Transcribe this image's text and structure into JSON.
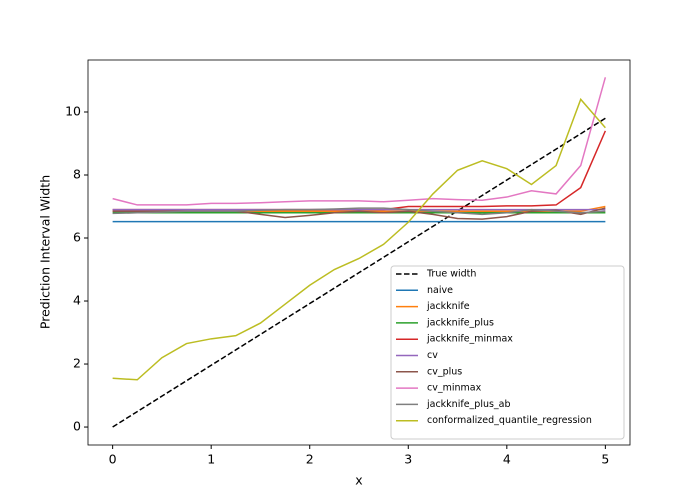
{
  "chart_data": {
    "type": "line",
    "xlabel": "x",
    "ylabel": "Prediction Interval Width",
    "x": [
      0,
      0.25,
      0.5,
      0.75,
      1,
      1.25,
      1.5,
      1.75,
      2,
      2.25,
      2.5,
      2.75,
      3,
      3.25,
      3.5,
      3.75,
      4,
      4.25,
      4.5,
      4.75,
      5
    ],
    "xlim": [
      -0.25,
      5.25
    ],
    "xticks": [
      0,
      1,
      2,
      3,
      4,
      5
    ],
    "ylim": [
      -0.57,
      11.65
    ],
    "yticks": [
      0,
      2,
      4,
      6,
      8,
      10
    ],
    "legend": "lower right",
    "series": [
      {
        "name": "True width",
        "color": "#000000",
        "dashed": true,
        "values": [
          0,
          0.49,
          0.98,
          1.47,
          1.96,
          2.45,
          2.94,
          3.43,
          3.92,
          4.41,
          4.9,
          5.39,
          5.88,
          6.37,
          6.86,
          7.35,
          7.84,
          8.33,
          8.82,
          9.31,
          9.8
        ]
      },
      {
        "name": "naive",
        "color": "#1f77b4",
        "values": [
          6.52,
          6.52,
          6.52,
          6.52,
          6.52,
          6.52,
          6.52,
          6.52,
          6.52,
          6.52,
          6.52,
          6.52,
          6.52,
          6.52,
          6.52,
          6.52,
          6.52,
          6.52,
          6.52,
          6.52,
          6.52
        ]
      },
      {
        "name": "jackknife",
        "color": "#ff7f0e",
        "values": [
          6.85,
          6.85,
          6.85,
          6.85,
          6.85,
          6.85,
          6.85,
          6.85,
          6.85,
          6.85,
          6.85,
          6.85,
          6.85,
          6.85,
          6.85,
          6.85,
          6.85,
          6.85,
          6.85,
          6.85,
          7.0
        ]
      },
      {
        "name": "jackknife_plus",
        "color": "#2ca02c",
        "values": [
          6.8,
          6.8,
          6.8,
          6.8,
          6.8,
          6.8,
          6.8,
          6.8,
          6.8,
          6.8,
          6.8,
          6.8,
          6.8,
          6.8,
          6.8,
          6.8,
          6.8,
          6.8,
          6.8,
          6.8,
          6.8
        ]
      },
      {
        "name": "jackknife_minmax",
        "color": "#d62728",
        "values": [
          6.9,
          6.9,
          6.9,
          6.9,
          6.9,
          6.9,
          6.9,
          6.9,
          6.9,
          6.9,
          6.9,
          6.9,
          7.0,
          7.0,
          7.0,
          7.0,
          7.02,
          7.02,
          7.05,
          7.6,
          9.4
        ]
      },
      {
        "name": "cv",
        "color": "#9467bd",
        "values": [
          6.9,
          6.9,
          6.9,
          6.9,
          6.9,
          6.9,
          6.9,
          6.9,
          6.9,
          6.9,
          6.9,
          6.9,
          6.9,
          6.9,
          6.9,
          6.9,
          6.9,
          6.9,
          6.9,
          6.9,
          6.9
        ]
      },
      {
        "name": "cv_plus",
        "color": "#8c564b",
        "values": [
          6.85,
          6.85,
          6.85,
          6.85,
          6.85,
          6.85,
          6.75,
          6.65,
          6.72,
          6.8,
          6.85,
          6.8,
          6.85,
          6.75,
          6.62,
          6.6,
          6.68,
          6.85,
          6.88,
          6.75,
          6.95
        ]
      },
      {
        "name": "cv_minmax",
        "color": "#e377c2",
        "values": [
          7.25,
          7.05,
          7.05,
          7.05,
          7.1,
          7.1,
          7.12,
          7.15,
          7.18,
          7.18,
          7.18,
          7.15,
          7.2,
          7.25,
          7.22,
          7.2,
          7.3,
          7.5,
          7.4,
          8.3,
          11.1
        ]
      },
      {
        "name": "jackknife_plus_ab",
        "color": "#7f7f7f",
        "values": [
          6.78,
          6.8,
          6.82,
          6.85,
          6.85,
          6.85,
          6.88,
          6.9,
          6.9,
          6.92,
          6.95,
          6.95,
          6.9,
          6.85,
          6.8,
          6.75,
          6.8,
          6.9,
          6.85,
          6.8,
          6.85
        ]
      },
      {
        "name": "conformalized_quantile_regression",
        "color": "#bcbd22",
        "values": [
          1.55,
          1.5,
          2.2,
          2.65,
          2.8,
          2.9,
          3.3,
          3.9,
          4.5,
          5.0,
          5.35,
          5.8,
          6.5,
          7.4,
          8.15,
          8.45,
          8.2,
          7.7,
          8.3,
          10.4,
          9.5
        ]
      }
    ]
  }
}
